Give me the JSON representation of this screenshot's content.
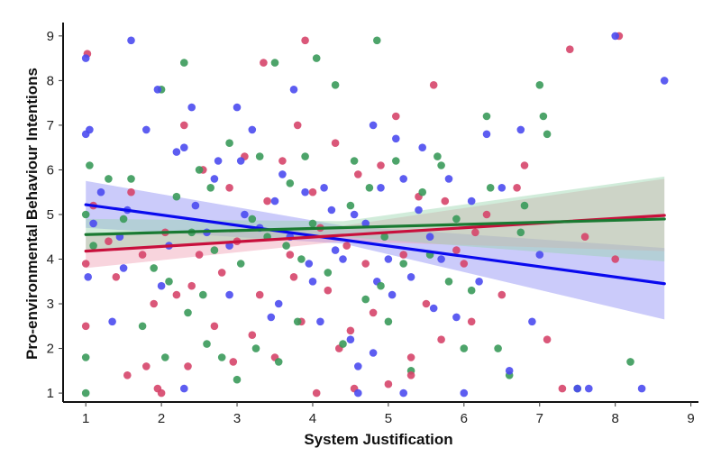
{
  "chart_data": {
    "type": "scatter",
    "title": "",
    "xlabel": "System Justification",
    "ylabel": "Pro-environmental Behaviour Intentions",
    "xlim": [
      0.7,
      9.1
    ],
    "ylim": [
      0.8,
      9.3
    ],
    "xticks": [
      1,
      2,
      3,
      4,
      5,
      6,
      7,
      8,
      9
    ],
    "yticks": [
      1,
      2,
      3,
      4,
      5,
      6,
      7,
      8,
      9
    ],
    "xtick_labels": [
      "1",
      "2",
      "3",
      "4",
      "5",
      "6",
      "7",
      "8",
      "9"
    ],
    "ytick_labels": [
      "1",
      "2",
      "3",
      "4",
      "5",
      "6",
      "7",
      "8",
      "9"
    ],
    "grid": false,
    "series": [
      {
        "name": "blue",
        "color": "#4b4bf0",
        "line_color": "#0a0aee",
        "band_color": "#8c8cf5",
        "fit": {
          "x0": 1.0,
          "y0": 5.22,
          "x1": 8.65,
          "y1": 3.45
        },
        "band": {
          "x": [
            1.0,
            4.4,
            8.65
          ],
          "lower": [
            4.7,
            4.35,
            2.65
          ],
          "upper": [
            5.75,
            4.75,
            4.25
          ]
        },
        "points": [
          [
            1.0,
            6.8
          ],
          [
            1.05,
            6.9
          ],
          [
            1.0,
            8.5
          ],
          [
            1.03,
            3.6
          ],
          [
            1.1,
            4.8
          ],
          [
            1.2,
            5.5
          ],
          [
            1.35,
            2.6
          ],
          [
            1.45,
            4.5
          ],
          [
            1.5,
            3.8
          ],
          [
            1.6,
            8.9
          ],
          [
            1.55,
            5.1
          ],
          [
            1.8,
            6.9
          ],
          [
            1.95,
            7.8
          ],
          [
            2.0,
            3.4
          ],
          [
            2.1,
            4.3
          ],
          [
            2.2,
            6.4
          ],
          [
            2.3,
            6.5
          ],
          [
            2.4,
            7.4
          ],
          [
            2.3,
            1.1
          ],
          [
            2.45,
            5.2
          ],
          [
            2.6,
            4.6
          ],
          [
            2.7,
            5.8
          ],
          [
            2.75,
            6.2
          ],
          [
            2.9,
            4.3
          ],
          [
            3.0,
            7.4
          ],
          [
            3.05,
            6.2
          ],
          [
            3.1,
            5.0
          ],
          [
            3.2,
            6.9
          ],
          [
            3.3,
            4.7
          ],
          [
            3.45,
            2.7
          ],
          [
            3.5,
            5.3
          ],
          [
            3.6,
            5.9
          ],
          [
            3.75,
            7.8
          ],
          [
            3.7,
            4.5
          ],
          [
            3.9,
            5.5
          ],
          [
            3.95,
            3.9
          ],
          [
            4.0,
            3.5
          ],
          [
            4.1,
            2.6
          ],
          [
            4.15,
            5.6
          ],
          [
            4.25,
            5.1
          ],
          [
            4.3,
            4.2
          ],
          [
            4.4,
            4.0
          ],
          [
            4.5,
            2.2
          ],
          [
            4.55,
            5.0
          ],
          [
            4.6,
            1.6
          ],
          [
            4.7,
            4.8
          ],
          [
            4.8,
            7.0
          ],
          [
            4.85,
            3.5
          ],
          [
            4.9,
            5.6
          ],
          [
            5.0,
            4.0
          ],
          [
            5.05,
            3.2
          ],
          [
            5.1,
            6.7
          ],
          [
            5.2,
            5.8
          ],
          [
            5.3,
            3.6
          ],
          [
            5.4,
            5.1
          ],
          [
            5.45,
            6.5
          ],
          [
            5.55,
            4.5
          ],
          [
            5.6,
            2.9
          ],
          [
            5.7,
            4.0
          ],
          [
            5.8,
            5.8
          ],
          [
            5.9,
            2.7
          ],
          [
            6.0,
            1.0
          ],
          [
            6.1,
            5.3
          ],
          [
            6.2,
            3.5
          ],
          [
            6.3,
            6.8
          ],
          [
            6.5,
            5.6
          ],
          [
            6.6,
            1.5
          ],
          [
            6.75,
            6.9
          ],
          [
            6.9,
            2.6
          ],
          [
            7.0,
            4.1
          ],
          [
            7.5,
            1.1
          ],
          [
            7.65,
            1.1
          ],
          [
            8.0,
            9.0
          ],
          [
            8.35,
            1.1
          ],
          [
            8.65,
            8.0
          ],
          [
            4.6,
            1.0
          ],
          [
            4.8,
            1.9
          ],
          [
            3.55,
            3.0
          ],
          [
            2.9,
            3.2
          ],
          [
            5.2,
            1.0
          ]
        ]
      },
      {
        "name": "red",
        "color": "#d6456a",
        "line_color": "#c8103c",
        "band_color": "#f0a0b4",
        "fit": {
          "x0": 1.0,
          "y0": 4.18,
          "x1": 8.65,
          "y1": 4.98
        },
        "band": {
          "x": [
            1.0,
            4.4,
            8.65
          ],
          "lower": [
            3.8,
            4.4,
            4.18
          ],
          "upper": [
            4.55,
            4.75,
            5.8
          ]
        },
        "points": [
          [
            1.0,
            2.5
          ],
          [
            1.02,
            8.6
          ],
          [
            1.0,
            3.9
          ],
          [
            1.1,
            5.2
          ],
          [
            1.3,
            4.4
          ],
          [
            1.4,
            3.6
          ],
          [
            1.55,
            1.4
          ],
          [
            1.6,
            5.5
          ],
          [
            1.75,
            4.1
          ],
          [
            1.9,
            3.0
          ],
          [
            1.95,
            1.1
          ],
          [
            2.0,
            1.0
          ],
          [
            2.05,
            4.6
          ],
          [
            2.2,
            3.2
          ],
          [
            2.3,
            7.0
          ],
          [
            2.35,
            1.6
          ],
          [
            2.5,
            4.1
          ],
          [
            2.55,
            6.0
          ],
          [
            2.7,
            2.5
          ],
          [
            2.8,
            3.7
          ],
          [
            2.9,
            5.6
          ],
          [
            2.95,
            1.7
          ],
          [
            3.0,
            4.4
          ],
          [
            3.1,
            6.3
          ],
          [
            3.2,
            2.3
          ],
          [
            3.3,
            3.2
          ],
          [
            3.35,
            8.4
          ],
          [
            3.4,
            5.3
          ],
          [
            3.5,
            1.8
          ],
          [
            3.6,
            6.2
          ],
          [
            3.7,
            4.1
          ],
          [
            3.8,
            7.0
          ],
          [
            3.85,
            2.6
          ],
          [
            3.9,
            8.9
          ],
          [
            4.0,
            5.5
          ],
          [
            4.05,
            1.0
          ],
          [
            4.1,
            4.7
          ],
          [
            4.2,
            3.3
          ],
          [
            4.3,
            6.6
          ],
          [
            4.35,
            2.0
          ],
          [
            4.45,
            4.3
          ],
          [
            4.55,
            1.1
          ],
          [
            4.6,
            5.9
          ],
          [
            4.7,
            3.9
          ],
          [
            4.8,
            2.8
          ],
          [
            4.9,
            6.1
          ],
          [
            5.0,
            1.2
          ],
          [
            5.1,
            7.2
          ],
          [
            5.2,
            4.1
          ],
          [
            5.3,
            1.8
          ],
          [
            5.4,
            5.4
          ],
          [
            5.5,
            3.0
          ],
          [
            5.6,
            7.9
          ],
          [
            5.7,
            2.2
          ],
          [
            5.75,
            5.3
          ],
          [
            5.9,
            4.2
          ],
          [
            6.0,
            3.9
          ],
          [
            6.1,
            2.6
          ],
          [
            6.15,
            4.6
          ],
          [
            6.3,
            5.0
          ],
          [
            6.5,
            3.2
          ],
          [
            6.7,
            5.6
          ],
          [
            6.8,
            6.1
          ],
          [
            7.1,
            2.2
          ],
          [
            7.3,
            1.1
          ],
          [
            7.4,
            8.7
          ],
          [
            7.6,
            4.5
          ],
          [
            8.05,
            9.0
          ],
          [
            8.0,
            4.0
          ],
          [
            2.4,
            3.4
          ],
          [
            3.75,
            3.6
          ],
          [
            5.3,
            1.4
          ],
          [
            4.5,
            2.4
          ],
          [
            1.8,
            1.6
          ]
        ]
      },
      {
        "name": "green",
        "color": "#3a9a5a",
        "line_color": "#1a7a32",
        "band_color": "#9ad4ac",
        "fit": {
          "x0": 1.0,
          "y0": 4.55,
          "x1": 8.65,
          "y1": 4.9
        },
        "band": {
          "x": [
            1.0,
            4.4,
            8.65
          ],
          "lower": [
            4.2,
            4.5,
            3.95
          ],
          "upper": [
            4.9,
            4.85,
            5.85
          ]
        },
        "points": [
          [
            1.0,
            1.8
          ],
          [
            1.0,
            5.0
          ],
          [
            1.05,
            6.1
          ],
          [
            1.0,
            1.0
          ],
          [
            1.1,
            4.3
          ],
          [
            1.3,
            5.8
          ],
          [
            1.5,
            4.9
          ],
          [
            1.6,
            5.8
          ],
          [
            1.75,
            2.5
          ],
          [
            1.9,
            3.8
          ],
          [
            2.0,
            7.8
          ],
          [
            2.05,
            1.8
          ],
          [
            2.1,
            3.5
          ],
          [
            2.2,
            5.4
          ],
          [
            2.3,
            8.4
          ],
          [
            2.35,
            2.8
          ],
          [
            2.4,
            4.6
          ],
          [
            2.5,
            6.0
          ],
          [
            2.55,
            3.2
          ],
          [
            2.65,
            5.6
          ],
          [
            2.7,
            4.2
          ],
          [
            2.8,
            1.8
          ],
          [
            2.9,
            6.6
          ],
          [
            3.0,
            1.3
          ],
          [
            3.05,
            3.9
          ],
          [
            3.2,
            4.9
          ],
          [
            3.25,
            2.0
          ],
          [
            3.3,
            6.3
          ],
          [
            3.4,
            4.5
          ],
          [
            3.5,
            8.4
          ],
          [
            3.55,
            1.7
          ],
          [
            3.65,
            4.3
          ],
          [
            3.7,
            5.7
          ],
          [
            3.8,
            2.6
          ],
          [
            3.9,
            6.3
          ],
          [
            4.0,
            4.8
          ],
          [
            4.05,
            8.5
          ],
          [
            4.2,
            3.7
          ],
          [
            4.3,
            7.9
          ],
          [
            4.4,
            2.1
          ],
          [
            4.5,
            5.2
          ],
          [
            4.55,
            6.2
          ],
          [
            4.7,
            3.1
          ],
          [
            4.75,
            5.6
          ],
          [
            4.85,
            8.9
          ],
          [
            4.95,
            4.5
          ],
          [
            5.0,
            2.6
          ],
          [
            5.1,
            6.2
          ],
          [
            5.2,
            3.9
          ],
          [
            5.3,
            1.5
          ],
          [
            5.45,
            5.5
          ],
          [
            5.55,
            4.1
          ],
          [
            5.7,
            6.1
          ],
          [
            5.8,
            3.5
          ],
          [
            5.9,
            4.9
          ],
          [
            6.0,
            2.0
          ],
          [
            6.1,
            3.3
          ],
          [
            6.3,
            7.2
          ],
          [
            6.35,
            5.6
          ],
          [
            6.45,
            2.0
          ],
          [
            6.6,
            1.4
          ],
          [
            6.75,
            4.6
          ],
          [
            6.8,
            5.2
          ],
          [
            7.0,
            7.9
          ],
          [
            7.05,
            7.2
          ],
          [
            7.1,
            6.8
          ],
          [
            7.5,
            1.1
          ],
          [
            8.2,
            1.7
          ],
          [
            2.6,
            2.1
          ],
          [
            3.85,
            4.0
          ],
          [
            4.9,
            3.4
          ],
          [
            5.65,
            6.3
          ]
        ]
      }
    ]
  }
}
